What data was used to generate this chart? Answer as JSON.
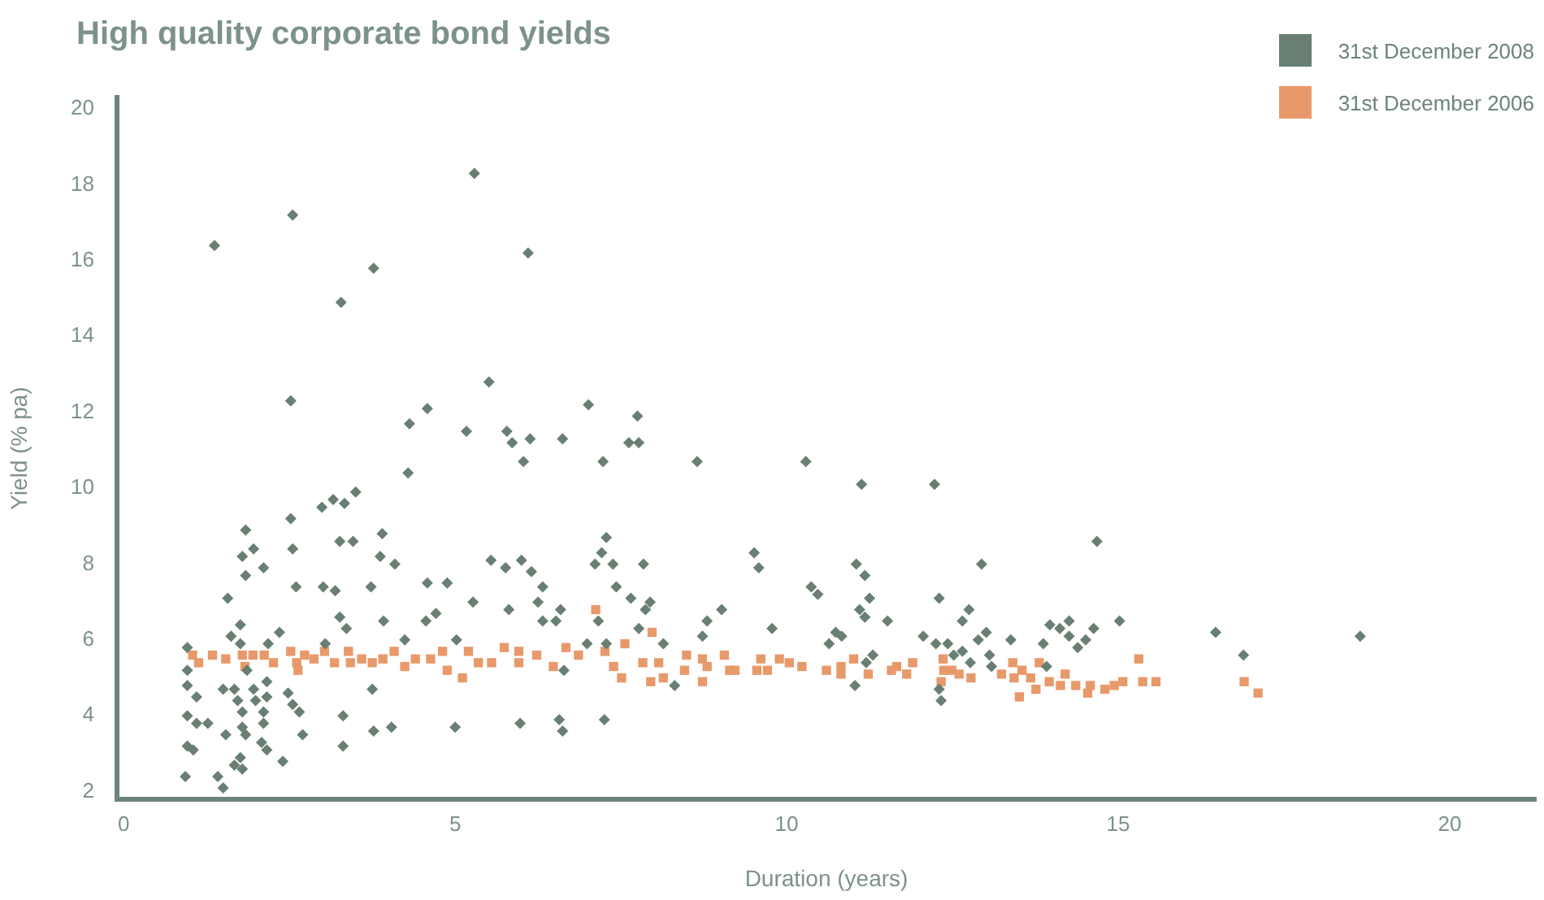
{
  "chart_data": {
    "type": "scatter",
    "title": "High quality corporate bond yields",
    "xlabel": "Duration (years)",
    "ylabel": "Yield (% pa)",
    "xlim": [
      -0.1,
      21.3
    ],
    "ylim": [
      1.8,
      20.3
    ],
    "xticks": [
      0,
      5,
      10,
      15,
      20
    ],
    "yticks": [
      2,
      4,
      6,
      8,
      10,
      12,
      14,
      16,
      18,
      20
    ],
    "grid": false,
    "legend": "top right",
    "series": [
      {
        "name": "31st December 2008",
        "color": "#687f72",
        "marker": "diamond",
        "x": [
          5.29,
          2.55,
          1.37,
          3.77,
          3.28,
          2.52,
          4.58,
          4.31,
          5.17,
          4.29,
          3.5,
          3.16,
          3.33,
          2.99,
          2.52,
          1.84,
          1.96,
          1.79,
          2.55,
          3.26,
          3.46,
          3.9,
          3.87,
          4.09,
          1.84,
          2.11,
          1.57,
          2.6,
          3.01,
          3.19,
          3.73,
          4.58,
          4.88,
          5.27,
          3.26,
          3.36,
          3.92,
          4.56,
          4.71,
          1.62,
          1.76,
          2.35,
          4.24,
          5.02,
          3.04,
          2.18,
          1.76,
          0.96,
          0.96,
          0.96,
          1.1,
          0.96,
          1.1,
          1.27,
          0.96,
          1.05,
          0.93,
          1.42,
          1.5,
          1.5,
          1.67,
          1.72,
          1.79,
          1.86,
          1.96,
          1.99,
          2.16,
          2.16,
          2.11,
          2.11,
          1.79,
          1.54,
          1.84,
          2.08,
          2.16,
          1.76,
          1.67,
          1.79,
          2.4,
          2.48,
          2.55,
          2.65,
          2.7,
          3.31,
          3.31,
          3.75,
          3.77,
          4.04,
          5.0,
          6.1,
          5.51,
          7.01,
          7.75,
          5.78,
          5.86,
          6.13,
          6.62,
          7.62,
          7.77,
          6.03,
          7.23,
          8.65,
          10.29,
          7.28,
          7.21,
          7.11,
          7.38,
          7.84,
          5.54,
          5.76,
          6.0,
          6.15,
          9.51,
          9.58,
          6.32,
          7.43,
          10.37,
          10.47,
          5.81,
          6.25,
          6.59,
          7.65,
          7.94,
          7.87,
          9.02,
          6.32,
          6.52,
          7.16,
          7.77,
          8.8,
          9.78,
          6.99,
          7.28,
          8.14,
          8.73,
          10.64,
          10.74,
          8.31,
          6.64,
          5.98,
          6.57,
          6.62,
          7.25,
          11.13,
          12.23,
          14.68,
          11.05,
          11.18,
          12.94,
          11.25,
          12.3,
          11.1,
          11.18,
          11.52,
          12.75,
          12.65,
          10.83,
          12.06,
          12.25,
          12.43,
          12.89,
          13.01,
          12.65,
          12.52,
          13.06,
          13.09,
          12.77,
          13.38,
          13.97,
          14.12,
          14.26,
          14.26,
          14.39,
          14.51,
          14.63,
          15.02,
          13.87,
          13.92,
          11.3,
          11.2,
          11.03,
          12.33,
          12.3,
          16.47,
          16.89,
          18.65
        ],
        "values": [
          18.3,
          17.2,
          16.4,
          15.8,
          14.9,
          12.3,
          12.1,
          11.7,
          11.5,
          10.4,
          9.9,
          9.7,
          9.6,
          9.5,
          9.2,
          8.9,
          8.4,
          8.2,
          8.4,
          8.6,
          8.6,
          8.8,
          8.2,
          8.0,
          7.7,
          7.9,
          7.1,
          7.4,
          7.4,
          7.3,
          7.4,
          7.5,
          7.5,
          7.0,
          6.6,
          6.3,
          6.5,
          6.5,
          6.7,
          6.1,
          6.4,
          6.2,
          6.0,
          6.0,
          5.9,
          5.9,
          5.9,
          5.8,
          5.2,
          4.8,
          4.5,
          4.0,
          3.8,
          3.8,
          3.2,
          3.1,
          2.4,
          2.4,
          2.1,
          4.7,
          4.7,
          4.4,
          4.1,
          5.2,
          4.7,
          4.4,
          4.9,
          4.5,
          4.1,
          3.8,
          3.7,
          3.5,
          3.5,
          3.3,
          3.1,
          2.9,
          2.7,
          2.6,
          2.8,
          4.6,
          4.3,
          4.1,
          3.5,
          4.0,
          3.2,
          4.7,
          3.6,
          3.7,
          3.7,
          16.2,
          12.8,
          12.2,
          11.9,
          11.5,
          11.2,
          11.3,
          11.3,
          11.2,
          11.2,
          10.7,
          10.7,
          10.7,
          10.7,
          8.7,
          8.3,
          8.0,
          8.0,
          8.0,
          8.1,
          7.9,
          8.1,
          7.8,
          8.3,
          7.9,
          7.4,
          7.4,
          7.4,
          7.2,
          6.8,
          7.0,
          6.8,
          7.1,
          7.0,
          6.8,
          6.8,
          6.5,
          6.5,
          6.5,
          6.3,
          6.5,
          6.3,
          5.9,
          5.9,
          5.9,
          6.1,
          5.9,
          6.2,
          4.8,
          5.2,
          3.8,
          3.9,
          3.6,
          3.9,
          10.1,
          10.1,
          8.6,
          8.0,
          7.7,
          8.0,
          7.1,
          7.1,
          6.8,
          6.6,
          6.5,
          6.8,
          6.5,
          6.1,
          6.1,
          5.9,
          5.9,
          6.0,
          6.2,
          5.7,
          5.6,
          5.6,
          5.3,
          5.4,
          6.0,
          6.4,
          6.3,
          6.5,
          6.1,
          5.8,
          6.0,
          6.3,
          6.5,
          5.9,
          5.3,
          5.6,
          5.4,
          4.8,
          4.4,
          4.7,
          6.2,
          5.6,
          6.1
        ]
      },
      {
        "name": "31st December 2006",
        "color": "#e8996a",
        "marker": "square",
        "x": [
          1.04,
          1.13,
          1.34,
          1.54,
          1.79,
          1.83,
          1.95,
          2.12,
          2.26,
          2.52,
          2.61,
          2.63,
          2.73,
          2.87,
          3.03,
          3.18,
          3.39,
          3.42,
          3.59,
          3.75,
          3.91,
          4.08,
          4.24,
          4.4,
          4.63,
          4.81,
          4.88,
          5.11,
          5.2,
          5.35,
          5.55,
          5.74,
          5.96,
          5.96,
          6.23,
          6.48,
          6.67,
          6.86,
          7.12,
          7.26,
          7.39,
          7.56,
          7.51,
          7.83,
          7.97,
          7.95,
          8.07,
          8.14,
          8.49,
          8.46,
          8.73,
          8.8,
          8.73,
          9.06,
          9.14,
          9.22,
          9.61,
          9.55,
          9.71,
          9.89,
          10.04,
          10.23,
          10.6,
          10.82,
          10.82,
          11.01,
          11.23,
          11.58,
          11.66,
          11.81,
          11.9,
          12.36,
          12.37,
          12.33,
          12.49,
          12.6,
          12.78,
          13.24,
          13.41,
          13.43,
          13.55,
          13.68,
          13.76,
          13.51,
          13.81,
          13.96,
          14.13,
          14.2,
          14.36,
          14.54,
          14.58,
          14.8,
          14.94,
          15.07,
          15.31,
          15.37,
          15.57,
          16.9,
          17.11
        ],
        "values": [
          5.6,
          5.4,
          5.6,
          5.5,
          5.6,
          5.3,
          5.6,
          5.6,
          5.4,
          5.7,
          5.4,
          5.2,
          5.6,
          5.5,
          5.7,
          5.4,
          5.7,
          5.4,
          5.5,
          5.4,
          5.5,
          5.7,
          5.3,
          5.5,
          5.5,
          5.7,
          5.2,
          5.0,
          5.7,
          5.4,
          5.4,
          5.8,
          5.7,
          5.4,
          5.6,
          5.3,
          5.8,
          5.6,
          6.8,
          5.7,
          5.3,
          5.9,
          5.0,
          5.4,
          6.2,
          4.9,
          5.4,
          5.0,
          5.6,
          5.2,
          5.5,
          5.3,
          4.9,
          5.6,
          5.2,
          5.2,
          5.5,
          5.2,
          5.2,
          5.5,
          5.4,
          5.3,
          5.2,
          5.3,
          5.1,
          5.5,
          5.1,
          5.2,
          5.3,
          5.1,
          5.4,
          5.5,
          5.2,
          4.9,
          5.2,
          5.1,
          5.0,
          5.1,
          5.4,
          5.0,
          5.2,
          5.0,
          4.7,
          4.5,
          5.4,
          4.9,
          4.8,
          5.1,
          4.8,
          4.6,
          4.8,
          4.7,
          4.8,
          4.9,
          5.5,
          4.9,
          4.9,
          4.9,
          4.6
        ]
      }
    ]
  }
}
